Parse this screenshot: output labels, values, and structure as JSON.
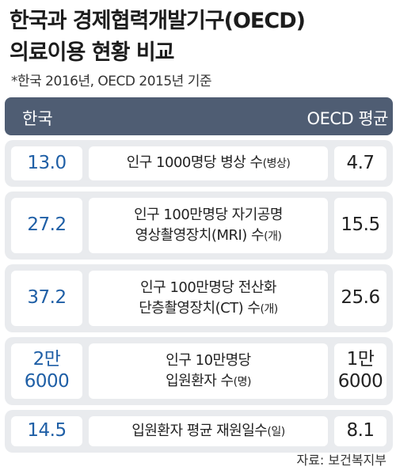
{
  "title_line1": "한국과 경제협력개발기구(OECD)",
  "title_line2": "의료이용 현황 비교",
  "subtitle": "*한국 2016년, OECD 2015년 기준",
  "header": {
    "left": "한국",
    "right": "OECD 평균"
  },
  "chart_data": {
    "type": "table",
    "columns": [
      "한국",
      "",
      "OECD 평균"
    ],
    "rows": [
      {
        "korea": "13.0",
        "label": "인구 1000명당 병상 수",
        "unit": "(병상)",
        "oecd": "4.7"
      },
      {
        "korea": "27.2",
        "label": "인구 100만명당 자기공명\n영상촬영장치(MRI) 수",
        "unit": "(개)",
        "oecd": "15.5"
      },
      {
        "korea": "37.2",
        "label": "인구 100만명당 전산화\n단층촬영장치(CT) 수",
        "unit": "(개)",
        "oecd": "25.6"
      },
      {
        "korea": "2만\n6000",
        "label": "인구 10만명당\n입원환자 수",
        "unit": "(명)",
        "oecd": "1만\n6000"
      },
      {
        "korea": "14.5",
        "label": "입원환자 평균 재원일수",
        "unit": "(일)",
        "oecd": "8.1"
      }
    ]
  },
  "source": "자료: 보건복지부"
}
